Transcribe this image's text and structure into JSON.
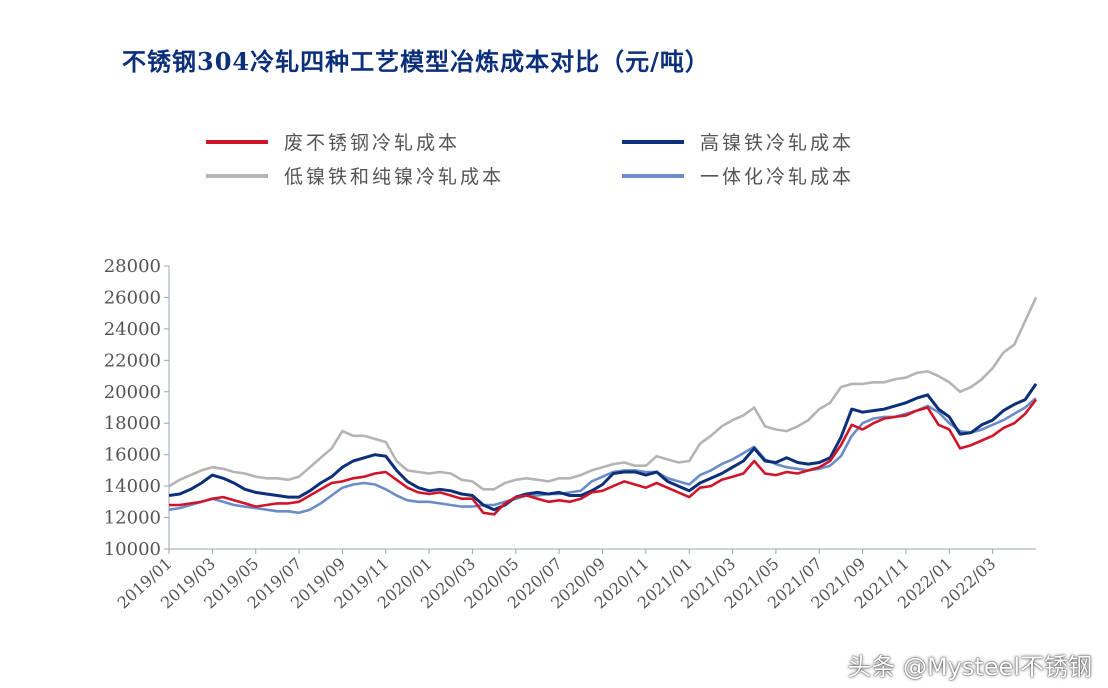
{
  "title": "不锈钢304冷轧四种工艺模型冶炼成本对比（元/吨）",
  "watermark": "头条 @Mysteel不锈钢",
  "chart_data": {
    "type": "line",
    "title": "不锈钢304冷轧四种工艺模型冶炼成本对比（元/吨）",
    "xlabel": "",
    "ylabel": "",
    "ylim": [
      10000,
      28000
    ],
    "yticks": [
      "28000",
      "26000",
      "24000",
      "22000",
      "20000",
      "18000",
      "16000",
      "14000",
      "12000",
      "10000"
    ],
    "xticks": [
      "2019/01",
      "2019/03",
      "2019/05",
      "2019/07",
      "2019/09",
      "2019/11",
      "2020/01",
      "2020/03",
      "2020/05",
      "2020/07",
      "2020/09",
      "2020/11",
      "2021/01",
      "2021/03",
      "2021/05",
      "2021/07",
      "2021/09",
      "2021/11",
      "2022/01",
      "2022/03"
    ],
    "x_months": [
      0,
      0.5,
      1,
      1.5,
      2,
      2.5,
      3,
      3.5,
      4,
      4.5,
      5,
      5.5,
      6,
      6.5,
      7,
      7.5,
      8,
      8.5,
      9,
      9.5,
      10,
      10.5,
      11,
      11.5,
      12,
      12.5,
      13,
      13.5,
      14,
      14.5,
      15,
      15.5,
      16,
      16.5,
      17,
      17.5,
      18,
      18.5,
      19,
      19.5,
      20,
      20.5,
      21,
      21.5,
      22,
      22.5,
      23,
      23.5,
      24,
      24.5,
      25,
      25.5,
      26,
      26.5,
      27,
      27.5,
      28,
      28.5,
      29,
      29.5,
      30,
      30.5,
      31,
      31.5,
      32,
      32.5,
      33,
      33.5,
      34,
      34.5,
      35,
      35.5,
      36,
      36.5,
      37,
      37.5,
      38,
      38.5,
      39,
      39.5,
      40
    ],
    "legend_position": "top",
    "grid": false,
    "series": [
      {
        "name": "废不锈钢冷轧成本",
        "color": "#d0152a",
        "values": [
          12800,
          12800,
          12900,
          13000,
          13200,
          13300,
          13100,
          12900,
          12700,
          12800,
          12900,
          12900,
          13000,
          13400,
          13800,
          14200,
          14300,
          14500,
          14600,
          14800,
          14900,
          14400,
          13900,
          13600,
          13500,
          13600,
          13400,
          13200,
          13200,
          12300,
          12200,
          12900,
          13300,
          13400,
          13200,
          13000,
          13100,
          13000,
          13200,
          13600,
          13700,
          14000,
          14300,
          14100,
          13900,
          14200,
          13900,
          13600,
          13300,
          13900,
          14000,
          14400,
          14600,
          14800,
          15600,
          14800,
          14700,
          14900,
          14800,
          15000,
          15200,
          15600,
          16600,
          17900,
          17600,
          18000,
          18300,
          18400,
          18500,
          18800,
          19000,
          17900,
          17600,
          16400,
          16600,
          16900,
          17200,
          17700,
          18000,
          18600,
          19500
        ]
      },
      {
        "name": "高镍铁冷轧成本",
        "color": "#0c2f7a",
        "values": [
          13400,
          13500,
          13800,
          14200,
          14700,
          14500,
          14200,
          13800,
          13600,
          13500,
          13400,
          13300,
          13300,
          13700,
          14200,
          14600,
          15200,
          15600,
          15800,
          16000,
          15900,
          15000,
          14300,
          13900,
          13700,
          13800,
          13700,
          13500,
          13400,
          12800,
          12500,
          12800,
          13300,
          13500,
          13600,
          13500,
          13600,
          13400,
          13400,
          13700,
          14100,
          14800,
          14900,
          14900,
          14700,
          14900,
          14300,
          14000,
          13700,
          14200,
          14500,
          14800,
          15200,
          15600,
          16400,
          15600,
          15500,
          15800,
          15500,
          15400,
          15500,
          15800,
          17100,
          18900,
          18700,
          18800,
          18900,
          19100,
          19300,
          19600,
          19800,
          18900,
          18400,
          17300,
          17400,
          17900,
          18200,
          18800,
          19200,
          19500,
          20500
        ]
      },
      {
        "name": "低镍铁和纯镍冷轧成本",
        "color": "#b4b4b4",
        "values": [
          14000,
          14400,
          14700,
          15000,
          15200,
          15100,
          14900,
          14800,
          14600,
          14500,
          14500,
          14400,
          14600,
          15200,
          15800,
          16400,
          17500,
          17200,
          17200,
          17000,
          16800,
          15600,
          15000,
          14900,
          14800,
          14900,
          14800,
          14400,
          14300,
          13800,
          13800,
          14200,
          14400,
          14500,
          14400,
          14300,
          14500,
          14500,
          14700,
          15000,
          15200,
          15400,
          15500,
          15300,
          15300,
          15900,
          15700,
          15500,
          15600,
          16700,
          17200,
          17800,
          18200,
          18500,
          19000,
          17800,
          17600,
          17500,
          17800,
          18200,
          18900,
          19300,
          20300,
          20500,
          20500,
          20600,
          20600,
          20800,
          20900,
          21200,
          21300,
          21000,
          20600,
          20000,
          20300,
          20800,
          21500,
          22500,
          23000,
          24500,
          26000
        ]
      },
      {
        "name": "一体化冷轧成本",
        "color": "#6b8cc7",
        "values": [
          12500,
          12600,
          12800,
          13000,
          13200,
          13000,
          12800,
          12700,
          12600,
          12500,
          12400,
          12400,
          12300,
          12500,
          12900,
          13400,
          13900,
          14100,
          14200,
          14100,
          13800,
          13400,
          13100,
          13000,
          13000,
          12900,
          12800,
          12700,
          12700,
          12800,
          12800,
          13000,
          13200,
          13400,
          13400,
          13500,
          13500,
          13600,
          13700,
          14300,
          14600,
          14900,
          15000,
          15000,
          14900,
          14900,
          14500,
          14300,
          14100,
          14700,
          15000,
          15400,
          15700,
          16100,
          16500,
          15700,
          15400,
          15200,
          15100,
          15000,
          15100,
          15300,
          15900,
          17200,
          18000,
          18300,
          18400,
          18400,
          18600,
          18800,
          19100,
          18700,
          18000,
          17500,
          17400,
          17600,
          17900,
          18200,
          18600,
          19000,
          19600
        ]
      }
    ]
  }
}
